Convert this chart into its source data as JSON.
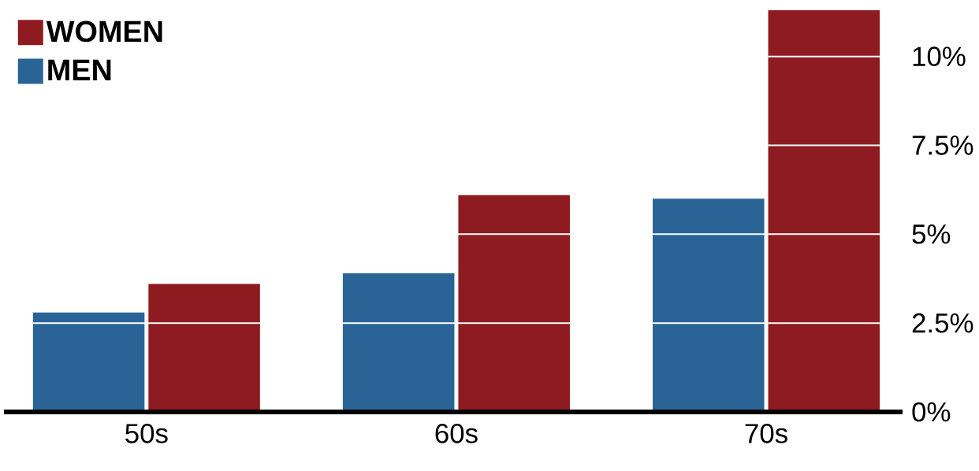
{
  "chart_data": {
    "type": "bar",
    "categories": [
      "50s",
      "60s",
      "70s"
    ],
    "series": [
      {
        "name": "MEN",
        "color": "#2a6496",
        "values": [
          2.8,
          3.9,
          6.0
        ]
      },
      {
        "name": "WOMEN",
        "color": "#8e1b20",
        "values": [
          3.6,
          6.1,
          11.3
        ]
      }
    ],
    "ylim": [
      0,
      11.3
    ],
    "yticks": [
      {
        "value": 0,
        "label": "0%"
      },
      {
        "value": 2.5,
        "label": "2.5%"
      },
      {
        "value": 5,
        "label": "5%"
      },
      {
        "value": 7.5,
        "label": "7.5%"
      },
      {
        "value": 10,
        "label": "10%"
      }
    ],
    "grid": "y",
    "legend": "top left"
  }
}
